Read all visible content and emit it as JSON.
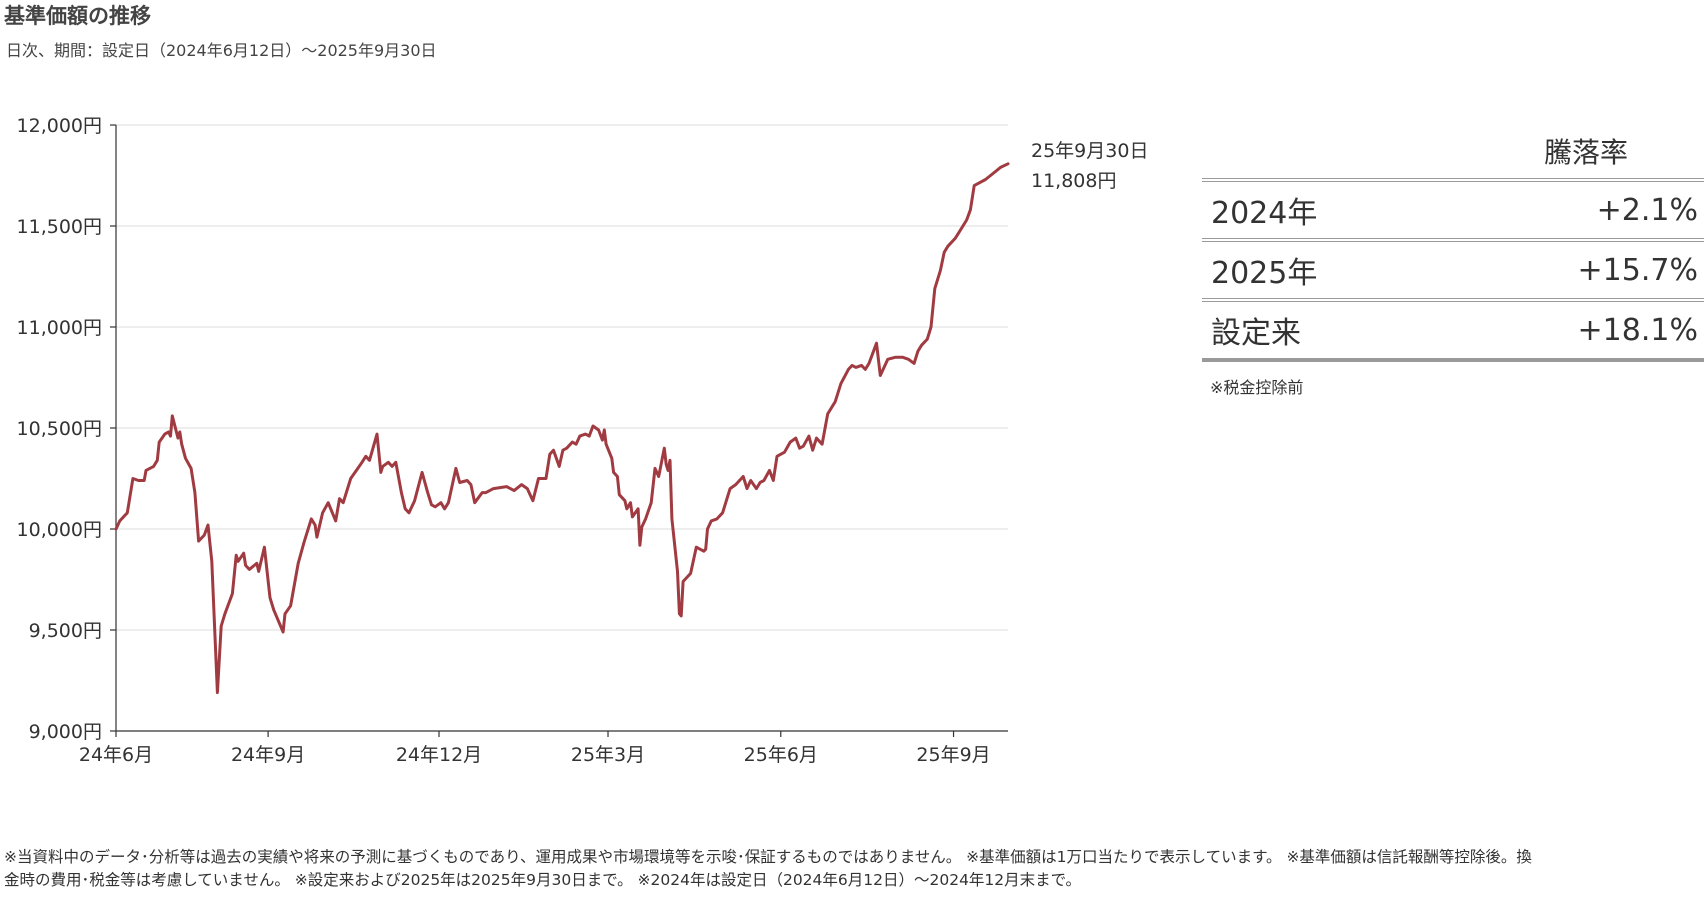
{
  "title": "基準価額の推移",
  "subtitle": "日次、期間：設定日（2024年6月12日）～2025年9月30日",
  "chart_data": {
    "type": "line",
    "series": [
      {
        "color": "#a13b42",
        "points": [
          [
            "2024-06-12",
            10000
          ],
          [
            "2024-06-14",
            10040
          ],
          [
            "2024-06-18",
            10080
          ],
          [
            "2024-06-21",
            10250
          ],
          [
            "2024-06-24",
            10240
          ],
          [
            "2024-06-27",
            10240
          ],
          [
            "2024-06-28",
            10290
          ],
          [
            "2024-07-02",
            10310
          ],
          [
            "2024-07-04",
            10340
          ],
          [
            "2024-07-05",
            10430
          ],
          [
            "2024-07-08",
            10470
          ],
          [
            "2024-07-10",
            10480
          ],
          [
            "2024-07-11",
            10460
          ],
          [
            "2024-07-12",
            10560
          ],
          [
            "2024-07-15",
            10450
          ],
          [
            "2024-07-16",
            10480
          ],
          [
            "2024-07-17",
            10420
          ],
          [
            "2024-07-19",
            10350
          ],
          [
            "2024-07-22",
            10300
          ],
          [
            "2024-07-24",
            10180
          ],
          [
            "2024-07-26",
            9940
          ],
          [
            "2024-07-29",
            9970
          ],
          [
            "2024-07-31",
            10020
          ],
          [
            "2024-08-02",
            9840
          ],
          [
            "2024-08-05",
            9190
          ],
          [
            "2024-08-07",
            9520
          ],
          [
            "2024-08-09",
            9580
          ],
          [
            "2024-08-13",
            9680
          ],
          [
            "2024-08-15",
            9870
          ],
          [
            "2024-08-16",
            9840
          ],
          [
            "2024-08-19",
            9880
          ],
          [
            "2024-08-20",
            9820
          ],
          [
            "2024-08-22",
            9800
          ],
          [
            "2024-08-26",
            9830
          ],
          [
            "2024-08-27",
            9790
          ],
          [
            "2024-08-30",
            9910
          ],
          [
            "2024-09-02",
            9660
          ],
          [
            "2024-09-04",
            9600
          ],
          [
            "2024-09-09",
            9490
          ],
          [
            "2024-09-10",
            9580
          ],
          [
            "2024-09-13",
            9620
          ],
          [
            "2024-09-17",
            9830
          ],
          [
            "2024-09-20",
            9930
          ],
          [
            "2024-09-24",
            10050
          ],
          [
            "2024-09-26",
            10020
          ],
          [
            "2024-09-27",
            9960
          ],
          [
            "2024-09-30",
            10080
          ],
          [
            "2024-10-03",
            10130
          ],
          [
            "2024-10-07",
            10040
          ],
          [
            "2024-10-09",
            10150
          ],
          [
            "2024-10-11",
            10130
          ],
          [
            "2024-10-15",
            10250
          ],
          [
            "2024-10-18",
            10290
          ],
          [
            "2024-10-21",
            10330
          ],
          [
            "2024-10-23",
            10360
          ],
          [
            "2024-10-25",
            10340
          ],
          [
            "2024-10-29",
            10470
          ],
          [
            "2024-10-31",
            10280
          ],
          [
            "2024-11-01",
            10310
          ],
          [
            "2024-11-04",
            10330
          ],
          [
            "2024-11-06",
            10310
          ],
          [
            "2024-11-08",
            10330
          ],
          [
            "2024-11-11",
            10180
          ],
          [
            "2024-11-13",
            10100
          ],
          [
            "2024-11-15",
            10080
          ],
          [
            "2024-11-18",
            10140
          ],
          [
            "2024-11-20",
            10210
          ],
          [
            "2024-11-22",
            10280
          ],
          [
            "2024-11-25",
            10180
          ],
          [
            "2024-11-27",
            10120
          ],
          [
            "2024-11-29",
            10110
          ],
          [
            "2024-12-02",
            10130
          ],
          [
            "2024-12-04",
            10100
          ],
          [
            "2024-12-06",
            10130
          ],
          [
            "2024-12-10",
            10300
          ],
          [
            "2024-12-12",
            10230
          ],
          [
            "2024-12-16",
            10240
          ],
          [
            "2024-12-18",
            10220
          ],
          [
            "2024-12-20",
            10130
          ],
          [
            "2024-12-24",
            10180
          ],
          [
            "2024-12-26",
            10180
          ],
          [
            "2024-12-30",
            10200
          ],
          [
            "2025-01-06",
            10210
          ],
          [
            "2025-01-10",
            10190
          ],
          [
            "2025-01-14",
            10220
          ],
          [
            "2025-01-17",
            10200
          ],
          [
            "2025-01-20",
            10140
          ],
          [
            "2025-01-23",
            10250
          ],
          [
            "2025-01-27",
            10250
          ],
          [
            "2025-01-29",
            10370
          ],
          [
            "2025-01-31",
            10390
          ],
          [
            "2025-02-03",
            10310
          ],
          [
            "2025-02-05",
            10390
          ],
          [
            "2025-02-07",
            10400
          ],
          [
            "2025-02-10",
            10430
          ],
          [
            "2025-02-12",
            10420
          ],
          [
            "2025-02-14",
            10460
          ],
          [
            "2025-02-17",
            10470
          ],
          [
            "2025-02-19",
            10460
          ],
          [
            "2025-02-21",
            10510
          ],
          [
            "2025-02-24",
            10490
          ],
          [
            "2025-02-26",
            10440
          ],
          [
            "2025-02-27",
            10490
          ],
          [
            "2025-02-28",
            10420
          ],
          [
            "2025-03-03",
            10350
          ],
          [
            "2025-03-04",
            10280
          ],
          [
            "2025-03-06",
            10260
          ],
          [
            "2025-03-07",
            10170
          ],
          [
            "2025-03-10",
            10140
          ],
          [
            "2025-03-11",
            10100
          ],
          [
            "2025-03-13",
            10130
          ],
          [
            "2025-03-14",
            10060
          ],
          [
            "2025-03-17",
            10100
          ],
          [
            "2025-03-18",
            9920
          ],
          [
            "2025-03-19",
            10010
          ],
          [
            "2025-03-21",
            10050
          ],
          [
            "2025-03-24",
            10130
          ],
          [
            "2025-03-26",
            10300
          ],
          [
            "2025-03-28",
            10260
          ],
          [
            "2025-03-31",
            10400
          ],
          [
            "2025-04-01",
            10320
          ],
          [
            "2025-04-02",
            10290
          ],
          [
            "2025-04-03",
            10340
          ],
          [
            "2025-04-04",
            10050
          ],
          [
            "2025-04-07",
            9790
          ],
          [
            "2025-04-08",
            9580
          ],
          [
            "2025-04-09",
            9570
          ],
          [
            "2025-04-10",
            9740
          ],
          [
            "2025-04-14",
            9780
          ],
          [
            "2025-04-17",
            9910
          ],
          [
            "2025-04-21",
            9890
          ],
          [
            "2025-04-22",
            9900
          ],
          [
            "2025-04-23",
            10000
          ],
          [
            "2025-04-25",
            10040
          ],
          [
            "2025-04-28",
            10050
          ],
          [
            "2025-05-01",
            10080
          ],
          [
            "2025-05-05",
            10200
          ],
          [
            "2025-05-08",
            10220
          ],
          [
            "2025-05-12",
            10260
          ],
          [
            "2025-05-14",
            10200
          ],
          [
            "2025-05-16",
            10240
          ],
          [
            "2025-05-19",
            10200
          ],
          [
            "2025-05-21",
            10230
          ],
          [
            "2025-05-23",
            10240
          ],
          [
            "2025-05-26",
            10290
          ],
          [
            "2025-05-28",
            10240
          ],
          [
            "2025-05-30",
            10360
          ],
          [
            "2025-06-03",
            10380
          ],
          [
            "2025-06-06",
            10430
          ],
          [
            "2025-06-09",
            10450
          ],
          [
            "2025-06-11",
            10400
          ],
          [
            "2025-06-13",
            10410
          ],
          [
            "2025-06-16",
            10460
          ],
          [
            "2025-06-18",
            10390
          ],
          [
            "2025-06-20",
            10450
          ],
          [
            "2025-06-23",
            10420
          ],
          [
            "2025-06-26",
            10570
          ],
          [
            "2025-06-30",
            10630
          ],
          [
            "2025-07-03",
            10720
          ],
          [
            "2025-07-07",
            10790
          ],
          [
            "2025-07-09",
            10810
          ],
          [
            "2025-07-11",
            10800
          ],
          [
            "2025-07-14",
            10810
          ],
          [
            "2025-07-16",
            10790
          ],
          [
            "2025-07-18",
            10820
          ],
          [
            "2025-07-22",
            10920
          ],
          [
            "2025-07-24",
            10760
          ],
          [
            "2025-07-28",
            10840
          ],
          [
            "2025-08-01",
            10850
          ],
          [
            "2025-08-05",
            10850
          ],
          [
            "2025-08-08",
            10840
          ],
          [
            "2025-08-11",
            10820
          ],
          [
            "2025-08-13",
            10880
          ],
          [
            "2025-08-15",
            10910
          ],
          [
            "2025-08-18",
            10940
          ],
          [
            "2025-08-20",
            11000
          ],
          [
            "2025-08-22",
            11190
          ],
          [
            "2025-08-25",
            11280
          ],
          [
            "2025-08-27",
            11370
          ],
          [
            "2025-08-29",
            11400
          ],
          [
            "2025-09-02",
            11440
          ],
          [
            "2025-09-04",
            11470
          ],
          [
            "2025-09-08",
            11530
          ],
          [
            "2025-09-10",
            11580
          ],
          [
            "2025-09-12",
            11700
          ],
          [
            "2025-09-16",
            11720
          ],
          [
            "2025-09-18",
            11730
          ],
          [
            "2025-09-22",
            11760
          ],
          [
            "2025-09-26",
            11790
          ],
          [
            "2025-09-30",
            11808
          ]
        ]
      }
    ],
    "ylim": [
      9000,
      12000
    ],
    "y_ticks": [
      {
        "value": 9000,
        "label": "9,000円"
      },
      {
        "value": 9500,
        "label": "9,500円"
      },
      {
        "value": 10000,
        "label": "10,000円"
      },
      {
        "value": 10500,
        "label": "10,500円"
      },
      {
        "value": 11000,
        "label": "11,000円"
      },
      {
        "value": 11500,
        "label": "11,500円"
      },
      {
        "value": 12000,
        "label": "12,000円"
      }
    ],
    "xlim": [
      "2024-06-12",
      "2025-09-30"
    ],
    "x_ticks": [
      {
        "date": "2024-06-12",
        "label": "24年6月"
      },
      {
        "date": "2024-09-01",
        "label": "24年9月"
      },
      {
        "date": "2024-12-01",
        "label": "24年12月"
      },
      {
        "date": "2025-03-01",
        "label": "25年3月"
      },
      {
        "date": "2025-06-01",
        "label": "25年6月"
      },
      {
        "date": "2025-09-01",
        "label": "25年9月"
      }
    ],
    "grid": true,
    "end_annotation": {
      "date_label": "25年9月30日",
      "value_label": "11,808円"
    }
  },
  "returns_table": {
    "header": "騰落率",
    "rows": [
      {
        "label": "2024年",
        "value": "+2.1%"
      },
      {
        "label": "2025年",
        "value": "+15.7%"
      },
      {
        "label": "設定来",
        "value": "+18.1%"
      }
    ],
    "note": "※税金控除前"
  },
  "footer": {
    "line1": "※当資料中のデータ･分析等は過去の実績や将来の予測に基づくものであり、運用成果や市場環境等を示唆･保証するものではありません。 ※基準価額は1万口当たりで表示しています。 ※基準価額は信託報酬等控除後。換",
    "line2": "金時の費用･税金等は考慮していません。 ※設定来および2025年は2025年9月30日まで。 ※2024年は設定日（2024年6月12日）～2024年12月末まで。"
  }
}
